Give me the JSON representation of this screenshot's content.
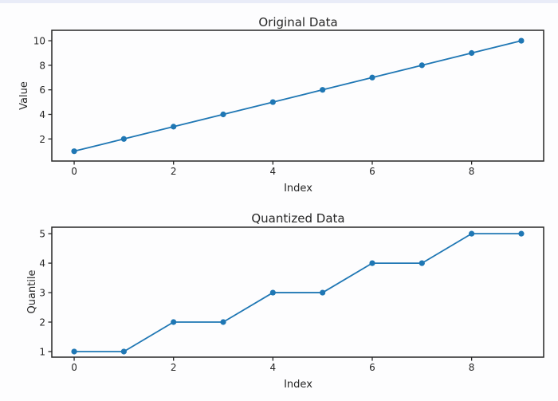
{
  "figure": {
    "background": "#fdfdfe",
    "top_strip_color": "#e9ecf8",
    "axes_color": "#262626"
  },
  "chart_data": [
    {
      "type": "line",
      "title": "Original Data",
      "xlabel": "Index",
      "ylabel": "Value",
      "x": [
        0,
        1,
        2,
        3,
        4,
        5,
        6,
        7,
        8,
        9
      ],
      "y": [
        1,
        2,
        3,
        4,
        5,
        6,
        7,
        8,
        9,
        10
      ],
      "xticks": [
        0,
        2,
        4,
        6,
        8
      ],
      "yticks": [
        2,
        4,
        6,
        8,
        10
      ],
      "xlim": [
        -0.45,
        9.45
      ],
      "ylim": [
        0.2,
        10.85
      ],
      "line_color": "#1f77b4",
      "marker": "o",
      "grid": false,
      "legend": null
    },
    {
      "type": "line",
      "title": "Quantized Data",
      "xlabel": "Index",
      "ylabel": "Quantile",
      "x": [
        0,
        1,
        2,
        3,
        4,
        5,
        6,
        7,
        8,
        9
      ],
      "y": [
        1,
        1,
        2,
        2,
        3,
        3,
        4,
        4,
        5,
        5
      ],
      "xticks": [
        0,
        2,
        4,
        6,
        8
      ],
      "yticks": [
        1,
        2,
        3,
        4,
        5
      ],
      "xlim": [
        -0.45,
        9.45
      ],
      "ylim": [
        0.81,
        5.22
      ],
      "line_color": "#1f77b4",
      "marker": "o",
      "grid": false,
      "legend": null
    }
  ]
}
